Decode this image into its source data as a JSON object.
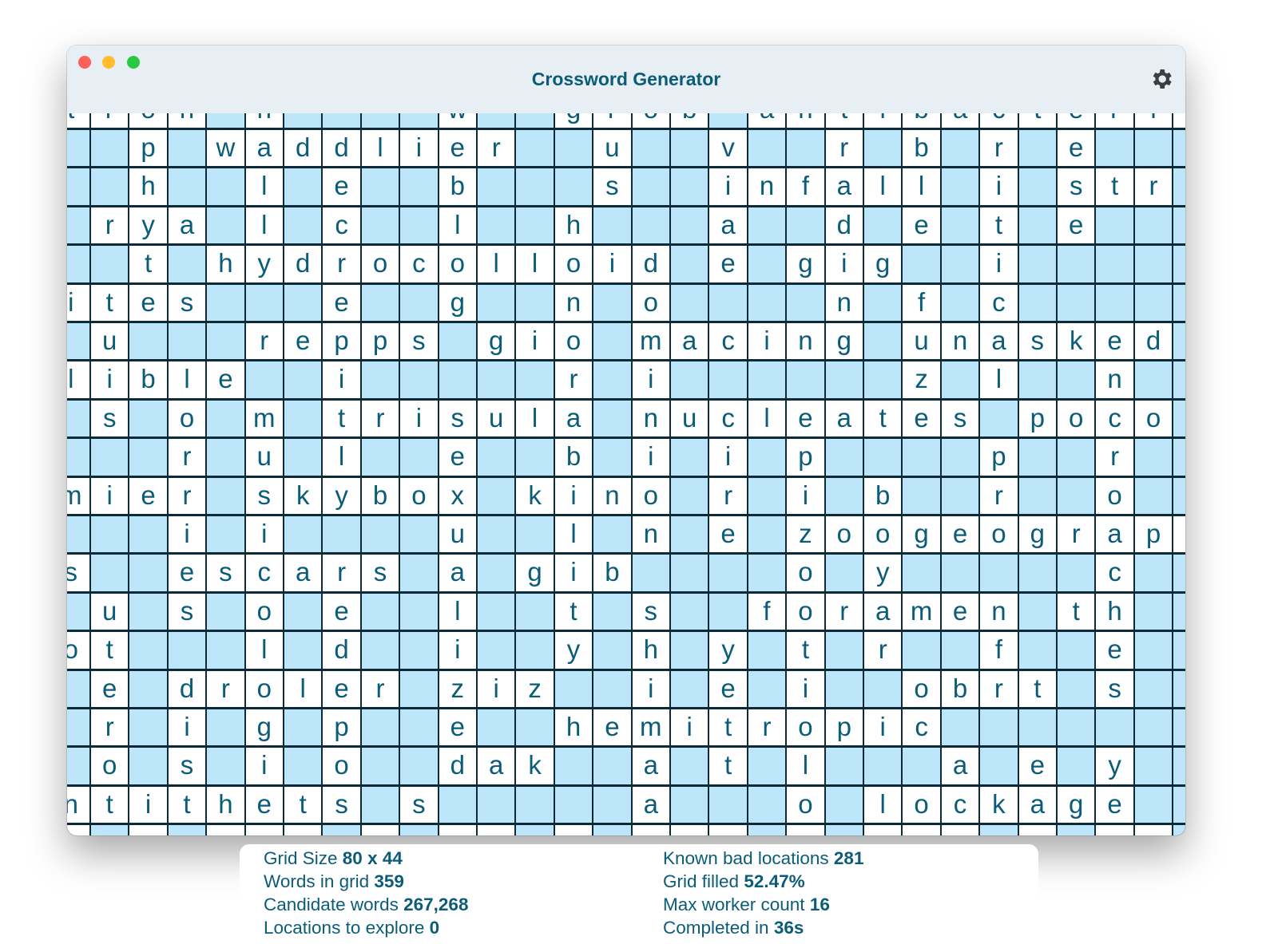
{
  "window": {
    "title": "Crossword Generator",
    "controls": [
      "close",
      "minimize",
      "maximize"
    ],
    "settings_icon": "gear-icon"
  },
  "colors": {
    "accent_text": "#0b5c78",
    "blank_cell": "#bde6fa",
    "grid_line": "#0d2a38",
    "titlebar": "#e7eff5"
  },
  "grid": {
    "rows": [
      "tron.n....w..grob.antibacteria",
      "..p.waddlier..u..v..r.b.r.e...",
      "..h..l.e..b...s..infall.i.str.",
      ".rya.l.c..l..h...a..d.e.t.e...",
      "..t.hydrocolloid.e.gig..i.....",
      "ites...e..g..n.o....n.f.c.....",
      ".u...repps.gio.macing.unasked.",
      "lible..i.....r.i......z.l..n..",
      ".s.o.m.trisula.nucleates.poco.",
      "...r.u.l..e..b.i.i.p....p..r..",
      "mier.skybox.kino.r.i.b..r..o..",
      "...i.i....u..l.n.e.zoogeograph",
      "s..escars.a.gib....o.y.....c..",
      ".u.s.o.e..l..t.s..foramen.th..",
      "ot...l.d..i..y.h.y.t.r..f..e..",
      ".e.droler.ziz..i.e.i..obrt.s..",
      ".r.i.g.p..e..hemitropic.......",
      ".o.s.i.o..dak..a.t.l...a.e.y..",
      "ntithets.s.....a...o.lockage..",
      "_._.___._.__._.___._.___._.__."
    ]
  },
  "stats": [
    {
      "label": "Grid Size",
      "value": "80 x 44"
    },
    {
      "label": "Words in grid",
      "value": "359"
    },
    {
      "label": "Candidate words",
      "value": "267,268"
    },
    {
      "label": "Locations to explore",
      "value": "0"
    },
    {
      "label": "Known bad locations",
      "value": "281"
    },
    {
      "label": "Grid filled",
      "value": "52.47%"
    },
    {
      "label": "Max worker count",
      "value": "16"
    },
    {
      "label": "Completed in",
      "value": "36s"
    }
  ]
}
